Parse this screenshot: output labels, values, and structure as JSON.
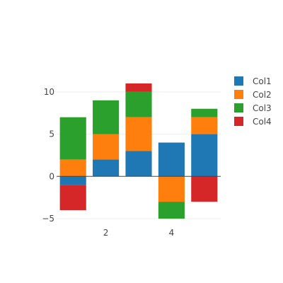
{
  "chart_data": {
    "type": "bar",
    "barmode": "relative",
    "x": [
      1,
      2,
      3,
      4,
      5
    ],
    "series": [
      {
        "name": "Col1",
        "color": "#1f77b4",
        "values": [
          -1,
          2,
          3,
          4,
          5
        ]
      },
      {
        "name": "Col2",
        "color": "#ff7f0e",
        "values": [
          2,
          3,
          4,
          -3,
          2
        ]
      },
      {
        "name": "Col3",
        "color": "#2ca02c",
        "values": [
          5,
          4,
          3,
          -2,
          1
        ]
      },
      {
        "name": "Col4",
        "color": "#d62728",
        "values": [
          -3,
          0,
          1,
          0,
          -3
        ]
      }
    ],
    "xticks": [
      2,
      4
    ],
    "yticks": [
      -5,
      0,
      5,
      10
    ],
    "xlim": [
      0.5,
      5.5
    ],
    "ylim": [
      -5,
      12.5
    ],
    "grid": true,
    "legend_position": "top-right",
    "title": "",
    "xlabel": "",
    "ylabel": ""
  }
}
